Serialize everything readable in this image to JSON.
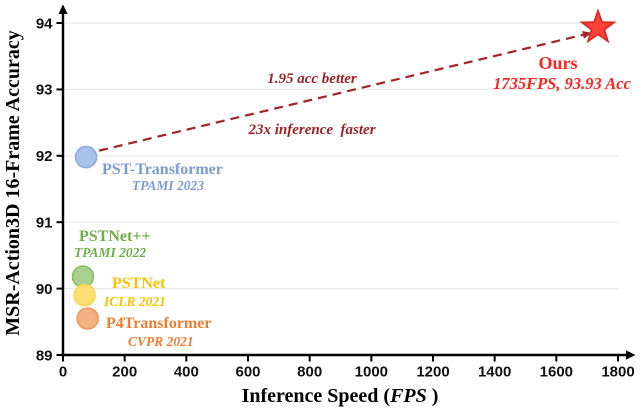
{
  "chart_data": {
    "type": "scatter",
    "title": "",
    "ylabel": "MSR-Action3D 16-Frame Accuracy",
    "xlabel": {
      "prefix": "Inference Speed (",
      "italic": "FPS",
      "suffix": " )"
    },
    "xlim": [
      0,
      1800
    ],
    "ylim": [
      89,
      94
    ],
    "x_ticks": [
      "0",
      "200",
      "400",
      "600",
      "800",
      "1000",
      "1200",
      "1400",
      "1600",
      "1800"
    ],
    "y_ticks": [
      "89",
      "90",
      "91",
      "92",
      "93",
      "94"
    ],
    "grid": {
      "horizontal": true,
      "color": "#E8E8E8"
    },
    "legend_position": "none",
    "series": [
      {
        "name": "PST-Transformer",
        "venue": "TPAMI 2023",
        "x": 75,
        "y": 91.98,
        "marker": "circle",
        "fill": "#ABC3E9",
        "stroke": "#8FAADC",
        "label_color": "#7C9BD3"
      },
      {
        "name": "PSTNet++",
        "venue": "TPAMI 2022",
        "x": 65,
        "y": 90.18,
        "marker": "circle",
        "fill": "#A9D08E",
        "stroke": "#89BE64",
        "label_color": "#70AD47"
      },
      {
        "name": "PSTNet",
        "venue": "ICLR 2021",
        "x": 70,
        "y": 89.9,
        "marker": "circle",
        "fill": "#FFE072",
        "stroke": "#FFD34D",
        "label_color": "#FFC000"
      },
      {
        "name": "P4Transformer",
        "venue": "CVPR 2021",
        "x": 80,
        "y": 89.55,
        "marker": "circle",
        "fill": "#F4B183",
        "stroke": "#EB9A61",
        "label_color": "#ED7D31"
      }
    ],
    "ours": {
      "name": "Ours",
      "detail": "1735FPS, 93.93 Acc",
      "x": 1735,
      "y": 93.93,
      "marker": "star",
      "fill": "#F9423A",
      "stroke": "#DE241B",
      "label_color": "#FF231D"
    },
    "annotation": {
      "line1": "1.95 acc better",
      "line2": "23x inference  faster",
      "color": "#9E2127"
    },
    "arrow": {
      "from": "PST-Transformer",
      "to": "Ours",
      "color": "#A3252B",
      "style": "dashed"
    },
    "axis_color": "#000000",
    "tick_label_color": "#111111"
  }
}
